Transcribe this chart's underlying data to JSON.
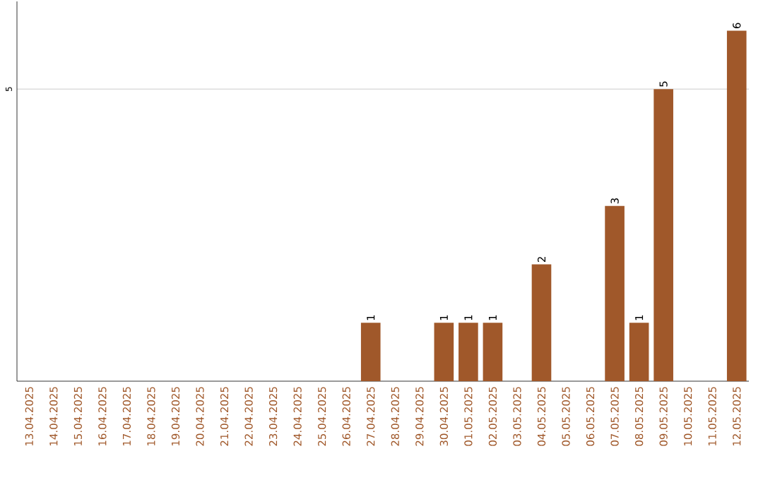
{
  "chart_data": {
    "type": "bar",
    "categories": [
      "13.04.2025",
      "14.04.2025",
      "15.04.2025",
      "16.04.2025",
      "17.04.2025",
      "18.04.2025",
      "19.04.2025",
      "20.04.2025",
      "21.04.2025",
      "22.04.2025",
      "23.04.2025",
      "24.04.2025",
      "25.04.2025",
      "26.04.2025",
      "27.04.2025",
      "28.04.2025",
      "29.04.2025",
      "30.04.2025",
      "01.05.2025",
      "02.05.2025",
      "03.05.2025",
      "04.05.2025",
      "05.05.2025",
      "06.05.2025",
      "07.05.2025",
      "08.05.2025",
      "09.05.2025",
      "10.05.2025",
      "11.05.2025",
      "12.05.2025"
    ],
    "values": [
      null,
      null,
      null,
      null,
      null,
      null,
      null,
      null,
      null,
      null,
      null,
      null,
      null,
      null,
      1,
      null,
      null,
      1,
      1,
      1,
      null,
      2,
      null,
      null,
      3,
      1,
      5,
      null,
      null,
      6
    ],
    "color": "#a0582a",
    "ylim": [
      0,
      6.5
    ],
    "yticks": [
      5
    ],
    "grid": "y",
    "data_labels": true
  }
}
